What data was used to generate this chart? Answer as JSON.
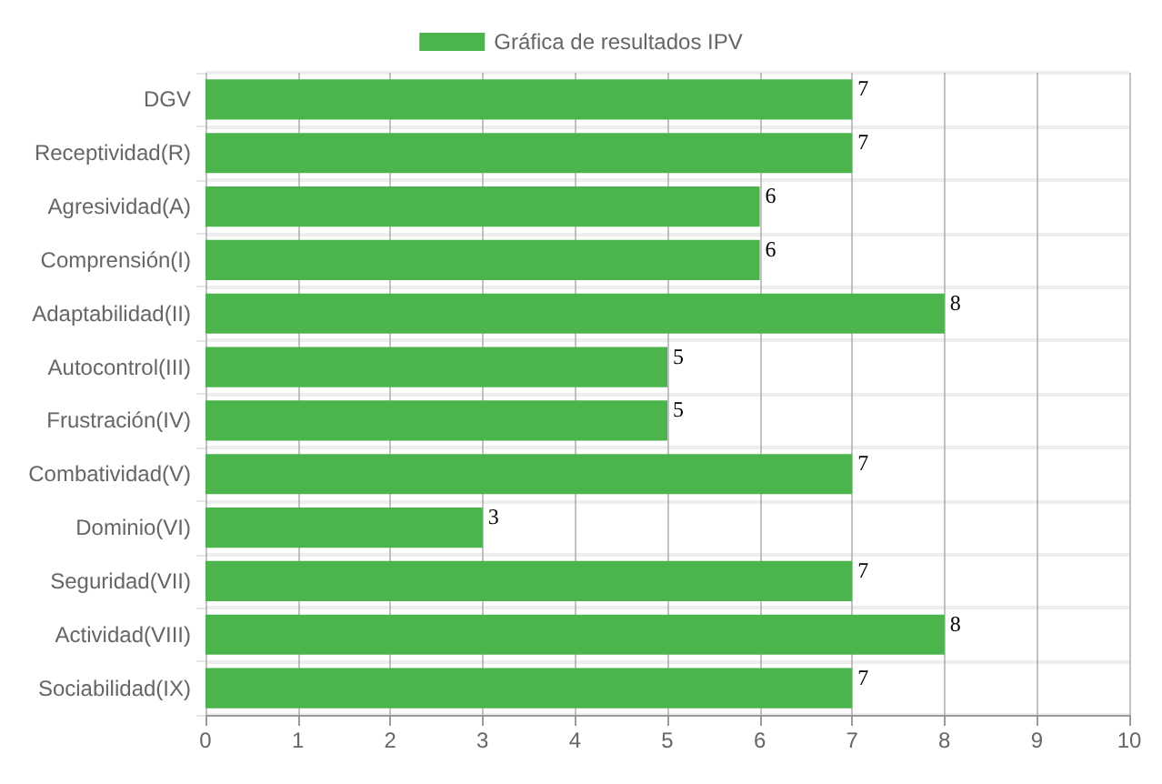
{
  "chart_data": {
    "type": "bar",
    "orientation": "horizontal",
    "categories": [
      "DGV",
      "Receptividad(R)",
      "Agresividad(A)",
      "Comprensión(I)",
      "Adaptabilidad(II)",
      "Autocontrol(III)",
      "Frustración(IV)",
      "Combatividad(V)",
      "Dominio(VI)",
      "Seguridad(VII)",
      "Actividad(VIII)",
      "Sociabilidad(IX)"
    ],
    "series": [
      {
        "name": "Gráfica de resultados IPV",
        "color": "#4cb44c",
        "values": [
          7,
          7,
          6,
          6,
          8,
          5,
          5,
          7,
          3,
          7,
          8,
          7
        ]
      }
    ],
    "xlim": [
      0,
      10
    ],
    "xticks": [
      0,
      1,
      2,
      3,
      4,
      5,
      6,
      7,
      8,
      9,
      10
    ],
    "grid": true,
    "legend": "top",
    "data_labels": true
  }
}
